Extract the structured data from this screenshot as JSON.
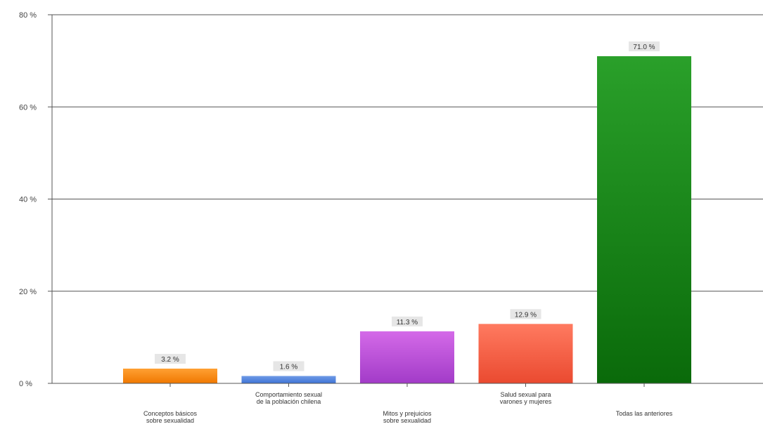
{
  "chart_data": {
    "type": "bar",
    "categories": [
      [
        "Conceptos básicos",
        "sobre sexualidad"
      ],
      [
        "Comportamiento sexual",
        "de la población chilena"
      ],
      [
        "Mitos y prejuicios",
        "sobre sexualidad"
      ],
      [
        "Salud sexual para",
        "varones y mujeres"
      ],
      [
        "Todas las anteriores"
      ]
    ],
    "values": [
      3.2,
      1.6,
      11.3,
      12.9,
      71.0
    ],
    "value_labels": [
      "3.2 %",
      "1.6 %",
      "11.3 %",
      "12.9 %",
      "71.0 %"
    ],
    "y_ticks": [
      0,
      20,
      40,
      60,
      80
    ],
    "y_tick_labels": [
      "0 %",
      "20 %",
      "40 %",
      "60 %",
      "80 %"
    ],
    "ylim": [
      0,
      80
    ],
    "grid": true,
    "bar_colors": [
      {
        "light": "#ffa033",
        "dark": "#f07800"
      },
      {
        "light": "#6f9ae6",
        "dark": "#3f74d6"
      },
      {
        "light": "#d46ae8",
        "dark": "#a23bc8"
      },
      {
        "light": "#ff7a60",
        "dark": "#ea4a30"
      },
      {
        "light": "#2aa02a",
        "dark": "#0a6a0a"
      }
    ]
  }
}
